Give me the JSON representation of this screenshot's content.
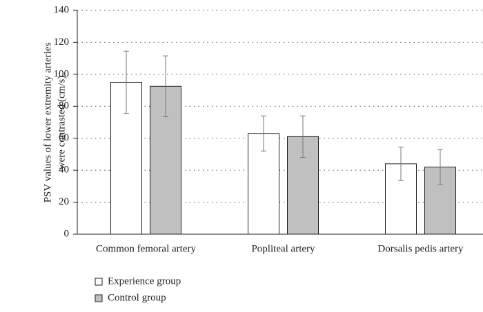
{
  "chart_data": {
    "type": "bar",
    "y_label": [
      "PSV values of lower extremity arteries",
      "were contrasted  (cm/s)"
    ],
    "categories": [
      "Common femoral artery",
      "Popliteal artery",
      "Dorsalis pedis artery"
    ],
    "series": [
      {
        "name": "Experience group",
        "color": "#ffffff",
        "values": [
          95,
          63,
          44
        ],
        "errors": [
          19.5,
          11,
          10.5
        ]
      },
      {
        "name": "Control group",
        "color": "#c0c0c0",
        "values": [
          92.5,
          61,
          42
        ],
        "errors": [
          19,
          13,
          11
        ]
      }
    ],
    "ylim": [
      0,
      140
    ],
    "yticks": [
      0,
      20,
      40,
      60,
      80,
      100,
      120,
      140
    ],
    "grid": true,
    "legend": "bottom-left"
  }
}
